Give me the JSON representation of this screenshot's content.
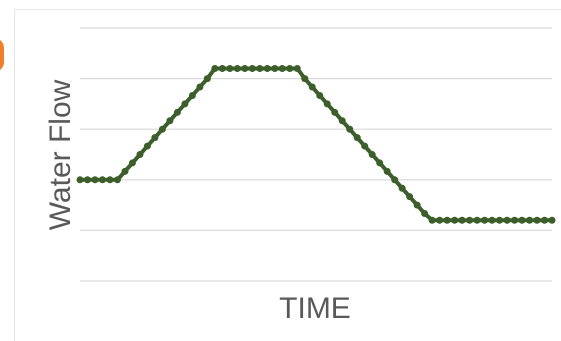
{
  "chart_data": {
    "type": "line",
    "title": "",
    "xlabel": "TIME",
    "ylabel": "Water Flow",
    "ylim": [
      0,
      5
    ],
    "grid": true,
    "legend": "none",
    "colors": {
      "line": "#3b5e2b",
      "grid": "#d9d9d9",
      "axis_text": "#595959",
      "accent_orange": "#f07f2a"
    },
    "x": [
      0,
      1,
      2,
      3,
      4,
      5,
      6,
      7,
      8,
      9,
      10,
      11,
      12,
      13,
      14,
      15,
      16,
      17,
      18,
      19,
      20,
      21,
      22,
      23,
      24,
      25,
      26,
      27,
      28,
      29,
      30,
      31,
      32,
      33,
      34,
      35,
      36,
      37,
      38,
      39,
      40,
      41,
      42,
      43,
      44,
      45,
      46,
      47,
      48,
      49,
      50,
      51,
      52,
      53,
      54,
      55,
      56,
      57,
      58,
      59,
      60,
      61,
      62,
      63
    ],
    "series": [
      {
        "name": "",
        "values": [
          2.0,
          2.0,
          2.0,
          2.0,
          2.0,
          2.0,
          2.1667,
          2.3333,
          2.5,
          2.6667,
          2.8333,
          3.0,
          3.1667,
          3.3333,
          3.5,
          3.6667,
          3.8333,
          4.0,
          4.2,
          4.2,
          4.2,
          4.2,
          4.2,
          4.2,
          4.2,
          4.2,
          4.2,
          4.2,
          4.2,
          4.2,
          4.0,
          3.8333,
          3.6667,
          3.5,
          3.3333,
          3.1667,
          3.0,
          2.8333,
          2.6667,
          2.5,
          2.3333,
          2.1667,
          2.0,
          1.8333,
          1.6667,
          1.5,
          1.3333,
          1.2,
          1.2,
          1.2,
          1.2,
          1.2,
          1.2,
          1.2,
          1.2,
          1.2,
          1.2,
          1.2,
          1.2,
          1.2,
          1.2,
          1.2,
          1.2,
          1.2
        ]
      }
    ]
  }
}
